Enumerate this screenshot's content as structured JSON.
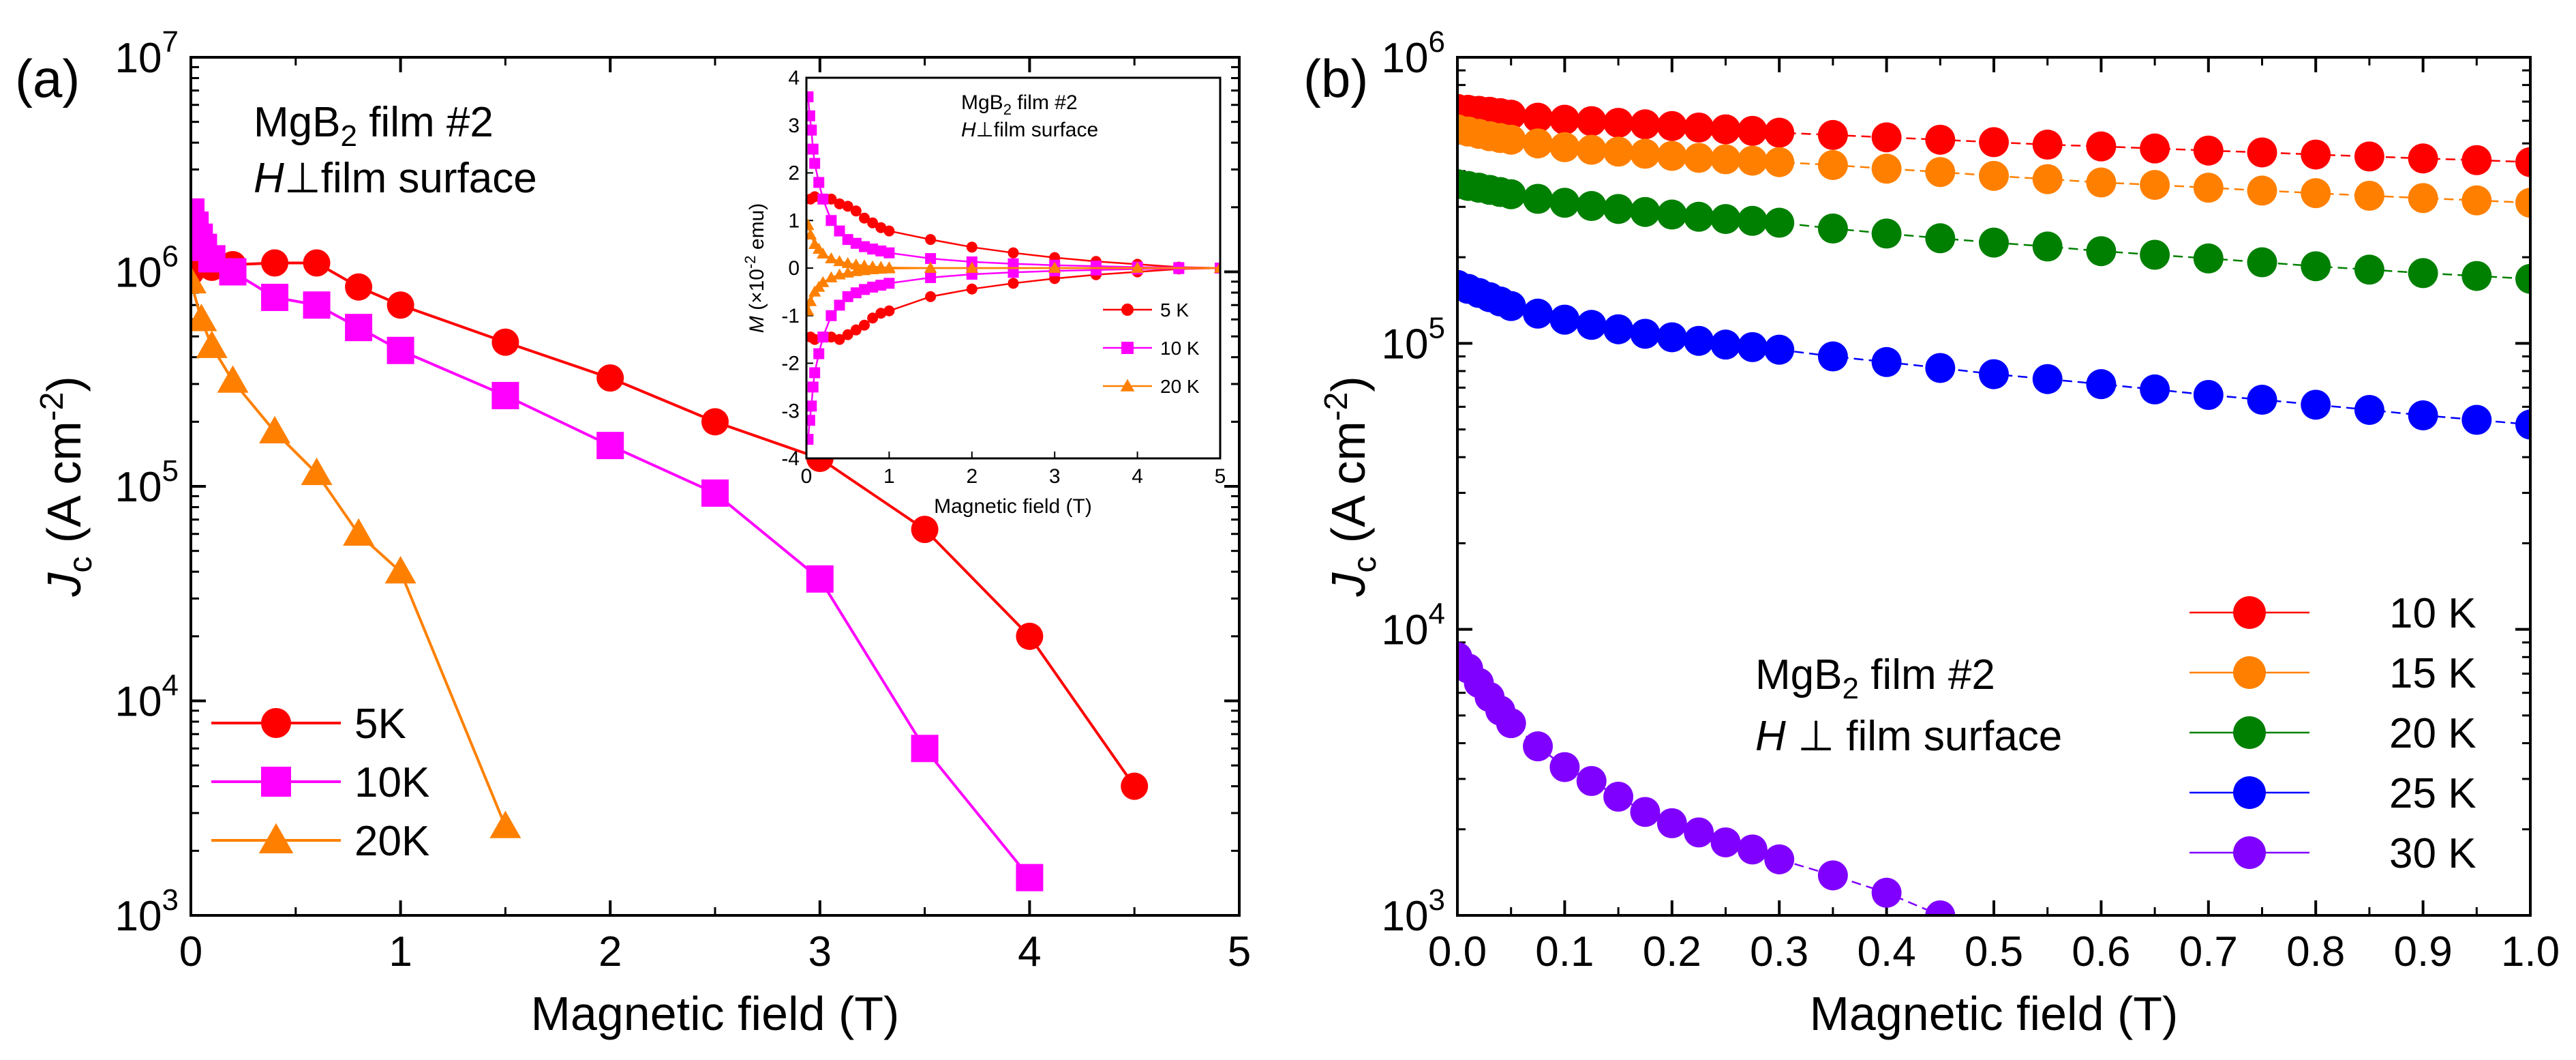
{
  "chart_data": [
    {
      "panel": "(a)",
      "type": "line",
      "title": "",
      "xlabel": "Magnetic field (T)",
      "ylabel_main": "J",
      "ylabel_sub": "c",
      "ylabel_rest": " (A cm",
      "ylabel_sup": "-2",
      "ylabel_end": ")",
      "xlim": [
        0,
        5
      ],
      "ylim": [
        1000,
        10000000
      ],
      "yscale": "log",
      "x_ticks": [
        "0",
        "1",
        "2",
        "3",
        "4",
        "5"
      ],
      "y_ticks": [
        {
          "base": "10",
          "exp": "3"
        },
        {
          "base": "10",
          "exp": "4"
        },
        {
          "base": "10",
          "exp": "5"
        },
        {
          "base": "10",
          "exp": "6"
        },
        {
          "base": "10",
          "exp": "7"
        }
      ],
      "annotation": {
        "line1_main": "MgB",
        "line1_sub": "2",
        "line1_rest": " film #2",
        "line2_italic": "H",
        "line2_rest": "⊥film surface"
      },
      "legend_position": "bottom-left",
      "series": [
        {
          "name": "5K",
          "color": "#ff0000",
          "marker": "circle",
          "x": [
            0,
            0.1,
            0.2,
            0.4,
            0.6,
            0.8,
            1.0,
            1.5,
            2.0,
            2.5,
            3.0,
            3.5,
            4.0,
            4.5
          ],
          "y": [
            1000000,
            1050000,
            1080000,
            1100000,
            1100000,
            850000,
            700000,
            470000,
            320000,
            200000,
            135000,
            63000,
            20000,
            4000
          ]
        },
        {
          "name": "10K",
          "color": "#ff00ff",
          "marker": "square",
          "x": [
            0,
            0.02,
            0.04,
            0.06,
            0.1,
            0.2,
            0.4,
            0.6,
            0.8,
            1.0,
            1.5,
            2.0,
            2.5,
            3.0,
            3.5,
            4.0
          ],
          "y": [
            1900000,
            1650000,
            1450000,
            1300000,
            1150000,
            1000000,
            760000,
            700000,
            550000,
            430000,
            265000,
            155000,
            93000,
            37000,
            6000,
            1500
          ]
        },
        {
          "name": "20K",
          "color": "#ff8000",
          "marker": "triangle",
          "x": [
            0,
            0.05,
            0.1,
            0.2,
            0.4,
            0.6,
            0.8,
            1.0,
            1.5
          ],
          "y": [
            900000,
            600000,
            450000,
            310000,
            180000,
            115000,
            60000,
            40000,
            2600
          ]
        }
      ],
      "inset": {
        "type": "line",
        "xlabel": "Magnetic field (T)",
        "ylabel_main": "M",
        "ylabel_rest": " (×10",
        "ylabel_sup": "-2",
        "ylabel_end": " emu)",
        "xlim": [
          0,
          5
        ],
        "ylim": [
          -4,
          4
        ],
        "x_ticks": [
          "0",
          "1",
          "2",
          "3",
          "4",
          "5"
        ],
        "y_ticks": [
          "-4",
          "-3",
          "-2",
          "-1",
          "0",
          "1",
          "2",
          "3",
          "4"
        ],
        "annotation": {
          "line1_main": "MgB",
          "line1_sub": "2",
          "line1_rest": " film #2",
          "line2_italic": "H",
          "line2_rest": "⊥film surface"
        },
        "series": [
          {
            "name": "5 K",
            "color": "#ff0000",
            "marker": "circle",
            "x": [
              0.05,
              0.1,
              0.2,
              0.3,
              0.4,
              0.5,
              0.6,
              0.7,
              0.8,
              0.9,
              1.0,
              1.5,
              2.0,
              2.5,
              3.0,
              3.5,
              4.0,
              4.5,
              5.0
            ],
            "y": [
              1.45,
              1.5,
              1.45,
              1.45,
              1.35,
              1.3,
              1.2,
              1.05,
              0.95,
              0.85,
              0.78,
              0.6,
              0.44,
              0.32,
              0.22,
              0.14,
              0.08,
              0.02,
              0
            ],
            "y_neg": [
              -1.45,
              -1.5,
              -1.45,
              -1.45,
              -1.5,
              -1.4,
              -1.3,
              -1.2,
              -1.05,
              -0.95,
              -0.9,
              -0.6,
              -0.44,
              -0.32,
              -0.22,
              -0.14,
              -0.08,
              -0.02,
              0
            ]
          },
          {
            "name": "10 K",
            "color": "#ff00ff",
            "marker": "square",
            "x": [
              0.02,
              0.04,
              0.06,
              0.08,
              0.1,
              0.15,
              0.2,
              0.3,
              0.4,
              0.5,
              0.6,
              0.7,
              0.8,
              0.9,
              1.0,
              1.5,
              2.0,
              2.5,
              3.0,
              3.5,
              4.0,
              4.5,
              5.0
            ],
            "y": [
              3.6,
              3.2,
              2.9,
              2.5,
              2.2,
              1.8,
              1.45,
              1.0,
              0.78,
              0.6,
              0.52,
              0.45,
              0.4,
              0.36,
              0.32,
              0.2,
              0.13,
              0.09,
              0.06,
              0.04,
              0.02,
              0.01,
              0
            ],
            "y_neg": [
              -3.6,
              -3.2,
              -2.9,
              -2.5,
              -2.2,
              -1.8,
              -1.45,
              -1.0,
              -0.78,
              -0.6,
              -0.52,
              -0.45,
              -0.4,
              -0.36,
              -0.32,
              -0.2,
              -0.13,
              -0.09,
              -0.06,
              -0.04,
              -0.02,
              -0.01,
              0
            ]
          },
          {
            "name": "20 K",
            "color": "#ff8000",
            "marker": "triangle",
            "x": [
              0.02,
              0.05,
              0.1,
              0.15,
              0.2,
              0.3,
              0.4,
              0.5,
              0.6,
              0.7,
              0.8,
              0.9,
              1.0,
              1.5,
              2.0,
              3.0,
              4.0,
              5.0
            ],
            "y": [
              0.9,
              0.7,
              0.5,
              0.4,
              0.3,
              0.2,
              0.14,
              0.1,
              0.07,
              0.05,
              0.03,
              0.02,
              0.01,
              0,
              0,
              0,
              0,
              0
            ],
            "y_neg": [
              -0.9,
              -0.7,
              -0.5,
              -0.4,
              -0.3,
              -0.2,
              -0.14,
              -0.1,
              -0.07,
              -0.05,
              -0.03,
              -0.02,
              -0.01,
              0,
              0,
              0,
              0,
              0
            ]
          }
        ]
      }
    },
    {
      "panel": "(b)",
      "type": "line",
      "title": "",
      "xlabel": "Magnetic field (T)",
      "ylabel_main": "J",
      "ylabel_sub": "c",
      "ylabel_rest": " (A cm",
      "ylabel_sup": "-2",
      "ylabel_end": ")",
      "xlim": [
        0,
        1.0
      ],
      "ylim": [
        1000,
        1000000
      ],
      "yscale": "log",
      "x_ticks": [
        "0.0",
        "0.1",
        "0.2",
        "0.3",
        "0.4",
        "0.5",
        "0.6",
        "0.7",
        "0.8",
        "0.9",
        "1.0"
      ],
      "y_ticks": [
        {
          "base": "10",
          "exp": "3"
        },
        {
          "base": "10",
          "exp": "4"
        },
        {
          "base": "10",
          "exp": "5"
        },
        {
          "base": "10",
          "exp": "6"
        }
      ],
      "annotation": {
        "line1_main": "MgB",
        "line1_sub": "2",
        "line1_rest": " film #2",
        "line2_italic": "H",
        "line2_rest": " ⊥ film surface"
      },
      "legend_position": "right",
      "series": [
        {
          "name": "10 K",
          "color": "#ff0000",
          "x": [
            0,
            0.01,
            0.02,
            0.03,
            0.04,
            0.05,
            0.075,
            0.1,
            0.125,
            0.15,
            0.175,
            0.2,
            0.225,
            0.25,
            0.275,
            0.3,
            0.35,
            0.4,
            0.45,
            0.5,
            0.55,
            0.6,
            0.65,
            0.7,
            0.75,
            0.8,
            0.85,
            0.9,
            0.95,
            1.0
          ],
          "y": [
            660000,
            655000,
            650000,
            645000,
            638000,
            630000,
            615000,
            605000,
            598000,
            590000,
            583000,
            575000,
            568000,
            560000,
            553000,
            545000,
            535000,
            525000,
            515000,
            505000,
            495000,
            488000,
            480000,
            472000,
            465000,
            457000,
            450000,
            443000,
            437000,
            430000
          ]
        },
        {
          "name": "15 K",
          "color": "#ff8000",
          "x": [
            0,
            0.01,
            0.02,
            0.03,
            0.04,
            0.05,
            0.075,
            0.1,
            0.125,
            0.15,
            0.175,
            0.2,
            0.225,
            0.25,
            0.275,
            0.3,
            0.35,
            0.4,
            0.45,
            0.5,
            0.55,
            0.6,
            0.65,
            0.7,
            0.75,
            0.8,
            0.85,
            0.9,
            0.95,
            1.0
          ],
          "y": [
            560000,
            550000,
            540000,
            530000,
            522000,
            515000,
            500000,
            485000,
            475000,
            468000,
            460000,
            452000,
            445000,
            440000,
            435000,
            430000,
            420000,
            408000,
            397000,
            385000,
            375000,
            365000,
            358000,
            350000,
            342000,
            335000,
            328000,
            322000,
            316000,
            310000
          ]
        },
        {
          "name": "20 K",
          "color": "#008000",
          "x": [
            0,
            0.01,
            0.02,
            0.03,
            0.04,
            0.05,
            0.075,
            0.1,
            0.125,
            0.15,
            0.175,
            0.2,
            0.225,
            0.25,
            0.275,
            0.3,
            0.35,
            0.4,
            0.45,
            0.5,
            0.55,
            0.6,
            0.65,
            0.7,
            0.75,
            0.8,
            0.85,
            0.9,
            0.95,
            1.0
          ],
          "y": [
            360000,
            355000,
            350000,
            344000,
            338000,
            332000,
            320000,
            310000,
            302000,
            295000,
            288000,
            282000,
            277000,
            272000,
            268000,
            264000,
            252000,
            242000,
            233000,
            225000,
            218000,
            210000,
            204000,
            198000,
            192000,
            186000,
            181000,
            176000,
            172000,
            168000
          ]
        },
        {
          "name": "25 K",
          "color": "#0000ff",
          "x": [
            0,
            0.01,
            0.02,
            0.03,
            0.04,
            0.05,
            0.075,
            0.1,
            0.125,
            0.15,
            0.175,
            0.2,
            0.225,
            0.25,
            0.275,
            0.3,
            0.35,
            0.4,
            0.45,
            0.5,
            0.55,
            0.6,
            0.65,
            0.7,
            0.75,
            0.8,
            0.85,
            0.9,
            0.95,
            1.0
          ],
          "y": [
            160000,
            155000,
            150000,
            145000,
            140000,
            135000,
            127000,
            121000,
            116000,
            112000,
            108000,
            105000,
            102000,
            99000,
            97000,
            95000,
            90000,
            86000,
            82000,
            78000,
            75000,
            72000,
            69000,
            66000,
            63500,
            61000,
            58500,
            56000,
            54000,
            52000
          ]
        },
        {
          "name": "30 K",
          "color": "#8000ff",
          "x": [
            0,
            0.01,
            0.02,
            0.03,
            0.04,
            0.05,
            0.075,
            0.1,
            0.125,
            0.15,
            0.175,
            0.2,
            0.225,
            0.25,
            0.275,
            0.3,
            0.35,
            0.4,
            0.45
          ],
          "y": [
            8000,
            7300,
            6500,
            5800,
            5200,
            4700,
            3900,
            3300,
            2950,
            2600,
            2300,
            2100,
            1950,
            1800,
            1700,
            1570,
            1380,
            1200,
            1000
          ]
        }
      ]
    }
  ]
}
